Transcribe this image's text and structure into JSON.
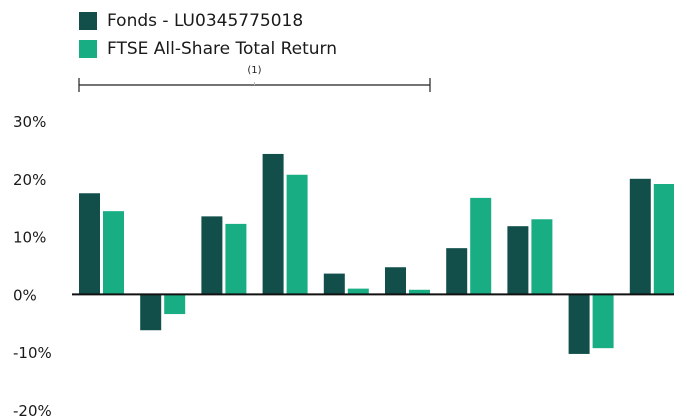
{
  "legend": {
    "items": [
      {
        "label": "Fonds - LU0345775018",
        "color": "#124f4b"
      },
      {
        "label": "FTSE All-Share Total Return",
        "color": "#19ad84"
      }
    ]
  },
  "colors": {
    "series_1": "#124f4b",
    "series_2": "#19ad84",
    "axis": "#111111"
  },
  "chart_data": {
    "type": "bar",
    "title": "",
    "xlabel": "",
    "ylabel": "",
    "ylim": [
      -20,
      30
    ],
    "y_ticks": [
      30,
      20,
      10,
      0,
      -10,
      -20
    ],
    "y_tick_labels": [
      "30%",
      "20%",
      "10%",
      "0%",
      "-10%",
      "-20%"
    ],
    "grid": false,
    "legend_position": "top-left",
    "categories": [
      "",
      "",
      "",
      "",
      "",
      "",
      "",
      "",
      "",
      ""
    ],
    "series": [
      {
        "name": "Fonds - LU0345775018",
        "values": [
          17.5,
          -6.2,
          13.5,
          24.3,
          3.6,
          4.7,
          8.0,
          11.8,
          -10.3,
          20.0
        ]
      },
      {
        "name": "FTSE All-Share Total Return",
        "values": [
          14.4,
          -3.4,
          12.2,
          20.7,
          1.0,
          0.8,
          16.7,
          13.0,
          -9.3,
          19.1
        ]
      }
    ],
    "annotations": [
      {
        "text": "(1)",
        "type": "bracket",
        "spans_categories": [
          0,
          5
        ]
      }
    ]
  }
}
